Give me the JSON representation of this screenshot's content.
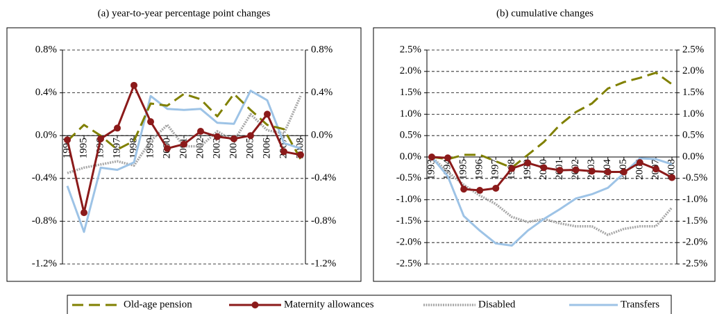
{
  "chart_data": [
    {
      "type": "line",
      "title": "(a) year-to-year percentage point changes",
      "categories": [
        "1994",
        "1995",
        "1996",
        "1997",
        "1998",
        "1999",
        "2000",
        "2001",
        "2002",
        "2003",
        "2004",
        "2005",
        "2006",
        "2007",
        "2008"
      ],
      "ylim": [
        -1.2,
        0.8
      ],
      "yticks": [
        {
          "value": -1.2,
          "label": "-1.2%"
        },
        {
          "value": -0.8,
          "label": "-0.8%"
        },
        {
          "value": -0.4,
          "label": "-0.4%"
        },
        {
          "value": 0,
          "label": "0.0%"
        },
        {
          "value": 0.4,
          "label": "0.4%"
        },
        {
          "value": 0.8,
          "label": "0.8%"
        }
      ],
      "grid": true,
      "series": [
        {
          "name": "Old-age pension",
          "color": "#808000",
          "style": "dashed",
          "values": [
            -0.05,
            0.1,
            0.0,
            -0.13,
            -0.05,
            0.3,
            0.28,
            0.39,
            0.34,
            0.18,
            0.39,
            0.24,
            0.1,
            0.06,
            -0.22
          ]
        },
        {
          "name": "Maternity allowances",
          "color": "#8b1a1a",
          "style": "solid",
          "marker": "circle",
          "values": [
            -0.04,
            -0.72,
            -0.03,
            0.07,
            0.47,
            0.13,
            -0.12,
            -0.08,
            0.04,
            -0.01,
            -0.03,
            0.0,
            0.2,
            -0.15,
            -0.18
          ]
        },
        {
          "name": "Disabled",
          "color": "#a6a6a6",
          "style": "dotted",
          "values": [
            -0.35,
            -0.3,
            -0.27,
            -0.24,
            -0.28,
            -0.05,
            0.1,
            -0.1,
            -0.1,
            0.04,
            -0.05,
            0.2,
            0.05,
            0.02,
            0.37
          ]
        },
        {
          "name": "Transfers",
          "color": "#9dc3e6",
          "style": "solid",
          "values": [
            -0.47,
            -0.9,
            -0.3,
            -0.32,
            -0.25,
            0.37,
            0.25,
            0.24,
            0.25,
            0.12,
            0.11,
            0.42,
            0.33,
            -0.07,
            -0.12
          ]
        }
      ]
    },
    {
      "type": "line",
      "title": "(b) cumulative changes",
      "categories": [
        "1993",
        "1994",
        "1995",
        "1996",
        "1997",
        "1998",
        "1999",
        "2000",
        "2001",
        "2002",
        "2003",
        "2004",
        "2005",
        "2006",
        "2007",
        "2008"
      ],
      "ylim": [
        -2.5,
        2.5
      ],
      "yticks": [
        {
          "value": -2.5,
          "label": "-2.5%"
        },
        {
          "value": -2.0,
          "label": "-2.0%"
        },
        {
          "value": -1.5,
          "label": "-1.5%"
        },
        {
          "value": -1.0,
          "label": "-1.0%"
        },
        {
          "value": -0.5,
          "label": "-0.5%"
        },
        {
          "value": 0,
          "label": "0.0%"
        },
        {
          "value": 0.5,
          "label": "0.5%"
        },
        {
          "value": 1.0,
          "label": "1.0%"
        },
        {
          "value": 1.5,
          "label": "1.5%"
        },
        {
          "value": 2.0,
          "label": "2.0%"
        },
        {
          "value": 2.5,
          "label": "2.5%"
        }
      ],
      "grid": true,
      "series": [
        {
          "name": "Old-age pension",
          "color": "#808000",
          "style": "dashed",
          "values": [
            0,
            -0.05,
            0.05,
            0.05,
            -0.1,
            -0.25,
            0.05,
            0.35,
            0.75,
            1.05,
            1.25,
            1.6,
            1.75,
            1.85,
            1.97,
            1.7
          ]
        },
        {
          "name": "Maternity allowances",
          "color": "#8b1a1a",
          "style": "solid",
          "marker": "circle",
          "values": [
            0,
            -0.02,
            -0.75,
            -0.78,
            -0.73,
            -0.27,
            -0.14,
            -0.25,
            -0.31,
            -0.3,
            -0.33,
            -0.35,
            -0.35,
            -0.13,
            -0.28,
            -0.48
          ]
        },
        {
          "name": "Disabled",
          "color": "#a6a6a6",
          "style": "dotted",
          "values": [
            0,
            -0.35,
            -0.65,
            -0.9,
            -1.1,
            -1.4,
            -1.52,
            -1.45,
            -1.55,
            -1.62,
            -1.62,
            -1.82,
            -1.68,
            -1.62,
            -1.62,
            -1.18
          ]
        },
        {
          "name": "Transfers",
          "color": "#9dc3e6",
          "style": "solid",
          "values": [
            0,
            -0.45,
            -1.38,
            -1.72,
            -2.02,
            -2.07,
            -1.72,
            -1.45,
            -1.22,
            -0.97,
            -0.87,
            -0.72,
            -0.38,
            -0.03,
            -0.05,
            -0.17
          ]
        }
      ]
    }
  ]
}
